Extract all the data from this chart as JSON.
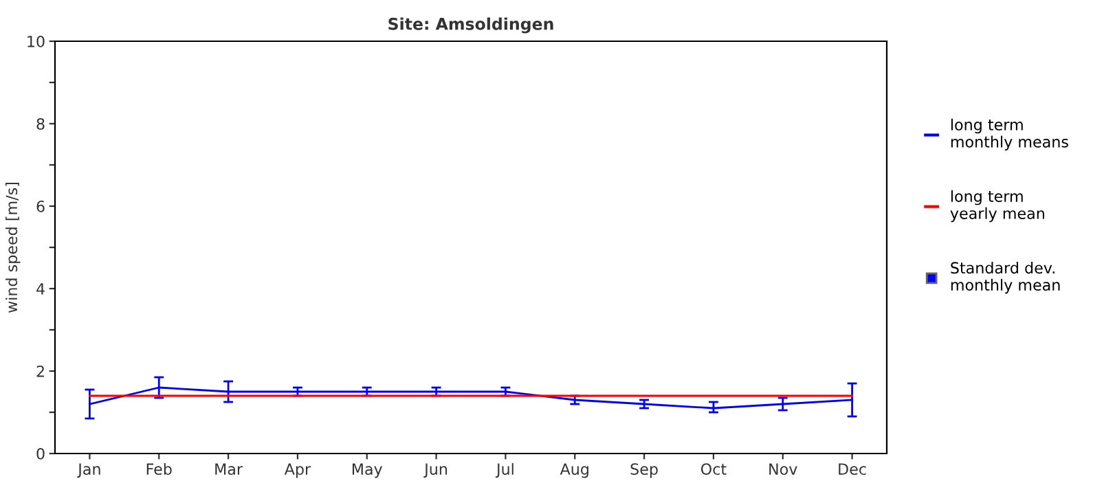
{
  "chart_data": {
    "type": "line",
    "title": "Site: Amsoldingen",
    "ylabel": "wind speed [m/s]",
    "categories": [
      "Jan",
      "Feb",
      "Mar",
      "Apr",
      "May",
      "Jun",
      "Jul",
      "Aug",
      "Sep",
      "Oct",
      "Nov",
      "Dec"
    ],
    "series": [
      {
        "name": "long term\nmonthly means",
        "color": "#0000ff",
        "values": [
          1.2,
          1.6,
          1.5,
          1.5,
          1.5,
          1.5,
          1.5,
          1.3,
          1.2,
          1.1,
          1.2,
          1.3
        ],
        "errors": [
          [
            0.85,
            1.55
          ],
          [
            1.35,
            1.85
          ],
          [
            1.25,
            1.75
          ],
          [
            1.4,
            1.6
          ],
          [
            1.4,
            1.6
          ],
          [
            1.4,
            1.6
          ],
          [
            1.4,
            1.6
          ],
          [
            1.2,
            1.4
          ],
          [
            1.1,
            1.3
          ],
          [
            1.0,
            1.25
          ],
          [
            1.05,
            1.35
          ],
          [
            0.9,
            1.7
          ]
        ]
      },
      {
        "name": "long term\nyearly mean",
        "color": "#ff0000",
        "values": [
          1.4,
          1.4,
          1.4,
          1.4,
          1.4,
          1.4,
          1.4,
          1.4,
          1.4,
          1.4,
          1.4,
          1.4
        ]
      }
    ],
    "annotations": [
      "Standard dev.\nmonthly mean"
    ],
    "ylim": [
      0,
      10
    ],
    "yticks": [
      0,
      {
        "value": 1,
        "label": null
      },
      2,
      {
        "value": 3,
        "label": null
      },
      4,
      {
        "value": 5,
        "label": null
      },
      6,
      {
        "value": 7,
        "label": null
      },
      8,
      {
        "value": 9,
        "label": null
      },
      10
    ],
    "grid": false,
    "legend": "right"
  }
}
